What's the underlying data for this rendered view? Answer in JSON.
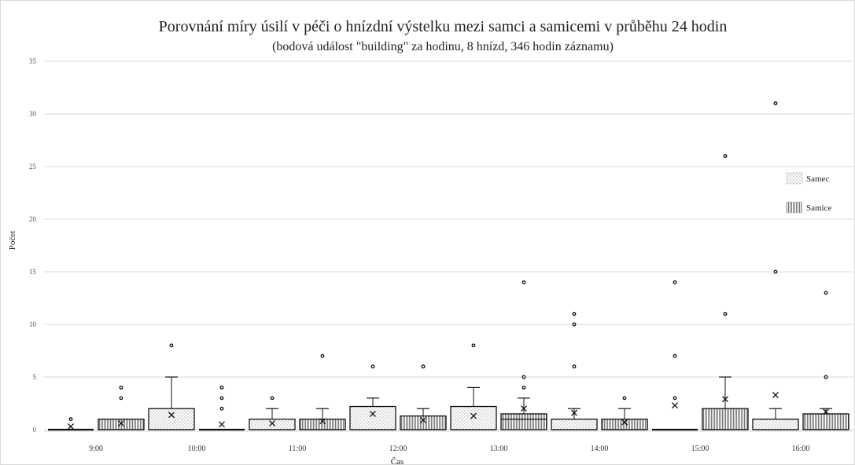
{
  "chart_data": {
    "type": "box",
    "title": "Porovnání míry úsilí v péči o hnízdní výstelku mezi samci a samicemi v průběhu 24 hodin",
    "subtitle": "(bodová událost \"building\" za hodinu, 8 hnízd, 346 hodin záznamu)",
    "xlabel": "Čas",
    "ylabel": "Počet",
    "ylim": [
      0,
      35
    ],
    "yticks": [
      0,
      5,
      10,
      15,
      20,
      25,
      30,
      35
    ],
    "grid": true,
    "legend_position": "right",
    "categories": [
      "9:00",
      "10:00",
      "11:00",
      "12:00",
      "13:00",
      "14:00",
      "15:00",
      "16:00"
    ],
    "series": [
      {
        "name": "Samec",
        "pattern": "dots",
        "boxes": [
          {
            "category": "9:00",
            "q1": 0,
            "median": 0,
            "q3": 0,
            "whisker_low": 0,
            "whisker_high": 0,
            "mean": 0.3,
            "outliers": [
              1
            ]
          },
          {
            "category": "10:00",
            "q1": 0,
            "median": 0,
            "q3": 2,
            "whisker_low": 0,
            "whisker_high": 5,
            "mean": 1.4,
            "outliers": [
              8
            ]
          },
          {
            "category": "11:00",
            "q1": 0,
            "median": 0,
            "q3": 1,
            "whisker_low": 0,
            "whisker_high": 2,
            "mean": 0.6,
            "outliers": [
              3
            ]
          },
          {
            "category": "12:00",
            "q1": 0,
            "median": 0,
            "q3": 2.2,
            "whisker_low": 0,
            "whisker_high": 3,
            "mean": 1.5,
            "outliers": [
              6
            ]
          },
          {
            "category": "13:00",
            "q1": 0,
            "median": 0,
            "q3": 2.2,
            "whisker_low": 0,
            "whisker_high": 4,
            "mean": 1.3,
            "outliers": [
              8
            ]
          },
          {
            "category": "14:00",
            "q1": 0,
            "median": 0,
            "q3": 1,
            "whisker_low": 0,
            "whisker_high": 2,
            "mean": 1.6,
            "outliers": [
              6,
              10,
              11
            ]
          },
          {
            "category": "15:00",
            "q1": 0,
            "median": 0,
            "q3": 0,
            "whisker_low": 0,
            "whisker_high": 0,
            "mean": 2.3,
            "outliers": [
              3,
              7,
              14
            ]
          },
          {
            "category": "16:00",
            "q1": 0,
            "median": 0,
            "q3": 1,
            "whisker_low": 0,
            "whisker_high": 2,
            "mean": 3.3,
            "outliers": [
              15,
              31
            ]
          }
        ]
      },
      {
        "name": "Samice",
        "pattern": "vertical-lines",
        "boxes": [
          {
            "category": "9:00",
            "q1": 0,
            "median": 0,
            "q3": 1,
            "whisker_low": 0,
            "whisker_high": 1,
            "mean": 0.6,
            "outliers": [
              3,
              4
            ]
          },
          {
            "category": "10:00",
            "q1": 0,
            "median": 0,
            "q3": 0,
            "whisker_low": 0,
            "whisker_high": 0,
            "mean": 0.5,
            "outliers": [
              2,
              3,
              4
            ]
          },
          {
            "category": "11:00",
            "q1": 0,
            "median": 0,
            "q3": 1,
            "whisker_low": 0,
            "whisker_high": 2,
            "mean": 0.8,
            "outliers": [
              7
            ]
          },
          {
            "category": "12:00",
            "q1": 0,
            "median": 0,
            "q3": 1.3,
            "whisker_low": 0,
            "whisker_high": 2,
            "mean": 0.9,
            "outliers": [
              6
            ]
          },
          {
            "category": "13:00",
            "q1": 0,
            "median": 1,
            "q3": 1.5,
            "whisker_low": 0,
            "whisker_high": 3,
            "mean": 2,
            "outliers": [
              4,
              5,
              14
            ]
          },
          {
            "category": "14:00",
            "q1": 0,
            "median": 0,
            "q3": 1,
            "whisker_low": 0,
            "whisker_high": 2,
            "mean": 0.7,
            "outliers": [
              3
            ]
          },
          {
            "category": "15:00",
            "q1": 0,
            "median": 0,
            "q3": 2,
            "whisker_low": 0,
            "whisker_high": 5,
            "mean": 2.9,
            "outliers": [
              11,
              26
            ]
          },
          {
            "category": "16:00",
            "q1": 0,
            "median": 0,
            "q3": 1.5,
            "whisker_low": 0,
            "whisker_high": 2,
            "mean": 1.7,
            "outliers": [
              5,
              13
            ]
          }
        ]
      }
    ]
  }
}
